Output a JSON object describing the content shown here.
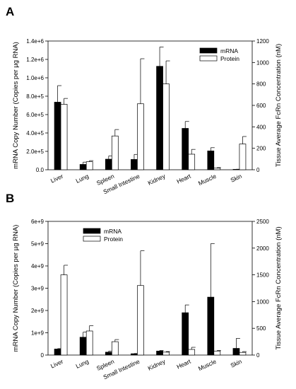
{
  "chart_data": [
    {
      "panel_label": "A",
      "type": "bar",
      "categories": [
        "Liver",
        "Lung",
        "Spleen",
        "Small Intestine",
        "Kidney",
        "Heart",
        "Muscle",
        "Skin"
      ],
      "ylabel": "mRNA Copy Number (Copies per µg RNA)",
      "ylabel_right": "Tissue Average FcRn Concentration (nM)",
      "ylim": [
        0,
        1400000
      ],
      "ylim_right": [
        0,
        1200
      ],
      "yticks": [
        0,
        200000,
        400000,
        600000,
        800000,
        1000000,
        1200000,
        1400000
      ],
      "ytick_labels": [
        "0.0",
        "2.0e+5",
        "4.0e+5",
        "6.0e+5",
        "8.0e+5",
        "1.0e+6",
        "1.2e+6",
        "1.4e+6"
      ],
      "yticks_right": [
        0,
        200,
        400,
        600,
        800,
        1000,
        1200
      ],
      "ytick_labels_right": [
        "0",
        "200",
        "400",
        "600",
        "800",
        "1000",
        "1200"
      ],
      "legend_position": "top-right",
      "series": [
        {
          "name": "mRNA",
          "axis": "left",
          "color": "#000000",
          "values": [
            735000,
            58000,
            115000,
            112000,
            1125000,
            450000,
            205000,
            3000
          ],
          "errors": [
            180000,
            25000,
            35000,
            55000,
            210000,
            75000,
            35000,
            3000
          ]
        },
        {
          "name": "Protein",
          "axis": "right",
          "color": "#ffffff",
          "values": [
            610,
            75,
            315,
            615,
            800,
            145,
            15,
            240
          ],
          "errors": [
            55,
            10,
            60,
            420,
            215,
            45,
            5,
            70
          ]
        }
      ],
      "grid": false
    },
    {
      "panel_label": "B",
      "type": "bar",
      "categories": [
        "Liver",
        "Lung",
        "Spleen",
        "Small Intestine",
        "Kidney",
        "Heart",
        "Muscle",
        "Skin"
      ],
      "ylabel": "mRNA Copy Number (Copies per µg RNA)",
      "ylabel_right": "Tissue Average FcRn Concentration (nM)",
      "ylim": [
        0,
        6000000000
      ],
      "ylim_right": [
        0,
        2500
      ],
      "yticks": [
        0,
        1000000000,
        2000000000,
        3000000000,
        4000000000,
        5000000000,
        6000000000
      ],
      "ytick_labels": [
        "0",
        "1e+9",
        "2e+9",
        "3e+9",
        "4e+9",
        "5e+9",
        "6e+9"
      ],
      "yticks_right": [
        0,
        500,
        1000,
        1500,
        2000,
        2500
      ],
      "ytick_labels_right": [
        "0",
        "500",
        "1000",
        "1500",
        "2000",
        "2500"
      ],
      "legend_position": "top-left",
      "series": [
        {
          "name": "mRNA",
          "axis": "left",
          "color": "#000000",
          "values": [
            270000000,
            800000000,
            130000000,
            60000000,
            180000000,
            1900000000,
            2600000000,
            300000000
          ],
          "errors": [
            20000000,
            230000000,
            50000000,
            10000000,
            30000000,
            350000000,
            2400000000,
            450000000
          ]
        },
        {
          "name": "Protein",
          "axis": "right",
          "color": "#ffffff",
          "values": [
            1500,
            450,
            250,
            1300,
            55,
            105,
            75,
            50
          ],
          "errors": [
            180,
            100,
            40,
            650,
            10,
            40,
            10,
            15
          ]
        }
      ],
      "grid": false
    }
  ]
}
